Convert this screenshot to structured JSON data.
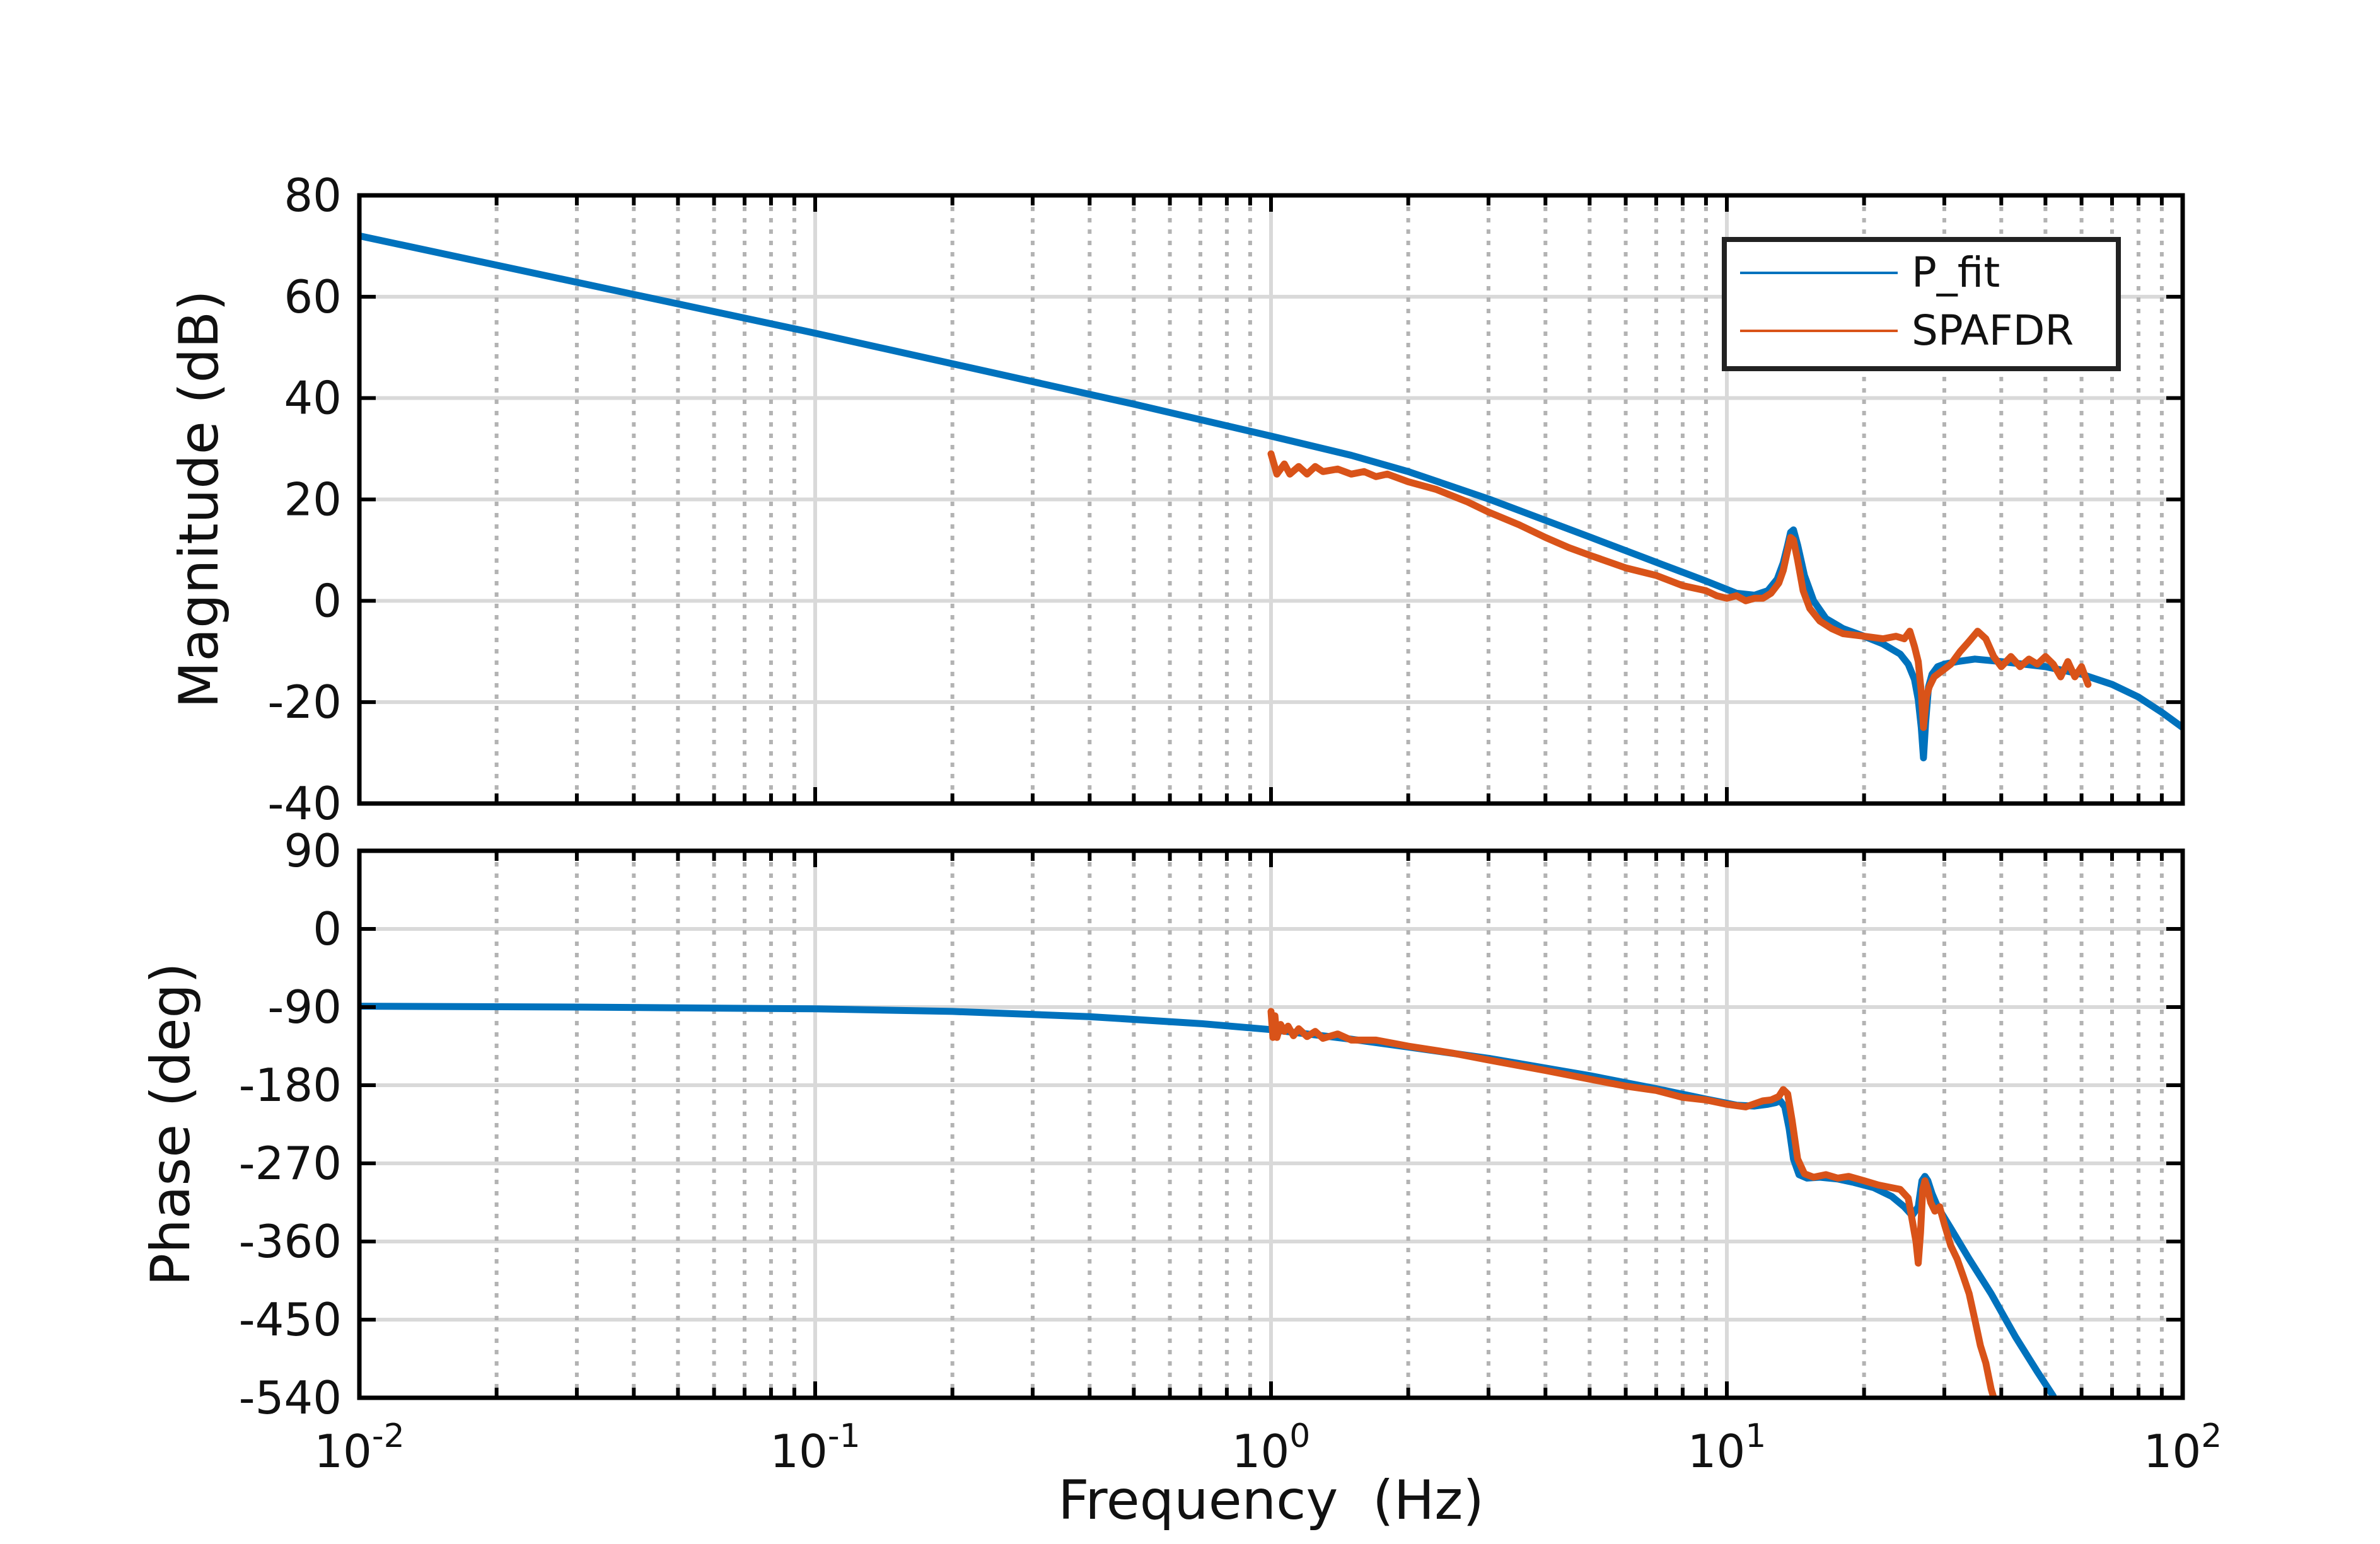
{
  "chart_data": [
    {
      "type": "line",
      "panel": "magnitude",
      "ylabel": "Magnitude (dB)",
      "ylim": [
        -40,
        80
      ],
      "yticks": [
        -40,
        -20,
        0,
        20,
        40,
        60,
        80
      ],
      "ytick_labels": [
        "-40",
        "-20",
        "0",
        "20",
        "40",
        "60",
        "80"
      ],
      "xscale": "log",
      "xlim": [
        0.01,
        100
      ],
      "grid": true,
      "legend": {
        "placement": "top-right",
        "entries": [
          "P_fit",
          "SPAFDR"
        ]
      },
      "series": [
        {
          "name": "P_fit",
          "color": "#0072BD",
          "x": [
            0.01,
            0.1,
            0.5,
            1.0,
            1.5,
            2.0,
            3.0,
            5.0,
            7.0,
            9.0,
            10.5,
            11.5,
            12.3,
            12.9,
            13.3,
            13.6,
            13.8,
            14.0,
            14.3,
            14.8,
            15.5,
            16.5,
            18.0,
            20.0,
            22.0,
            24.0,
            25.0,
            25.8,
            26.3,
            26.7,
            27.0,
            27.3,
            27.7,
            28.2,
            29.0,
            30.0,
            32.0,
            35.0,
            40.0,
            50.0,
            60.0,
            70.0,
            80.0,
            90.0,
            100.0
          ],
          "y": [
            72,
            52.8,
            38.8,
            32.5,
            28.7,
            25.5,
            20.1,
            12.6,
            7.6,
            3.9,
            1.5,
            1.1,
            2.0,
            4.3,
            7.5,
            11.0,
            13.5,
            14.0,
            11.0,
            5.0,
            0.0,
            -3.5,
            -5.5,
            -7.0,
            -8.5,
            -10.5,
            -12.5,
            -15.5,
            -19.5,
            -25.0,
            -31.0,
            -24.0,
            -17.0,
            -14.5,
            -13.0,
            -12.5,
            -12.0,
            -11.5,
            -12.0,
            -13.0,
            -14.5,
            -16.5,
            -19.0,
            -22.0,
            -25.0
          ]
        },
        {
          "name": "SPAFDR",
          "color": "#D95319",
          "x": [
            1.0,
            1.03,
            1.07,
            1.1,
            1.15,
            1.2,
            1.25,
            1.3,
            1.4,
            1.5,
            1.6,
            1.7,
            1.8,
            2.0,
            2.3,
            2.7,
            3.0,
            3.5,
            4.0,
            4.5,
            5.0,
            6.0,
            7.0,
            8.0,
            9.0,
            9.5,
            10.0,
            10.5,
            11.0,
            11.5,
            12.0,
            12.5,
            13.0,
            13.3,
            13.6,
            13.8,
            14.0,
            14.3,
            14.7,
            15.2,
            16.0,
            17.0,
            18.0,
            20.0,
            22.0,
            23.5,
            24.5,
            25.2,
            25.8,
            26.3,
            26.7,
            27.0,
            27.4,
            27.8,
            28.5,
            30.0,
            31.0,
            32.5,
            34.0,
            35.5,
            37.0,
            38.5,
            40.0,
            42.0,
            44.0,
            46.0,
            48.0,
            50.0,
            52.0,
            54.0,
            56.0,
            58.0,
            60.0,
            62.0
          ],
          "y": [
            29.0,
            25.0,
            27.0,
            25.0,
            26.5,
            25.0,
            26.5,
            25.5,
            26.0,
            25.0,
            25.5,
            24.5,
            25.0,
            23.5,
            22.0,
            19.5,
            17.5,
            15.0,
            12.5,
            10.5,
            9.0,
            6.5,
            5.0,
            3.0,
            2.0,
            1.0,
            0.5,
            1.0,
            0.0,
            0.5,
            0.5,
            1.5,
            3.5,
            6.0,
            10.0,
            12.5,
            12.0,
            8.0,
            2.0,
            -1.5,
            -4.0,
            -5.5,
            -6.5,
            -7.0,
            -7.5,
            -7.0,
            -7.5,
            -6.0,
            -9.0,
            -12.0,
            -18.0,
            -25.0,
            -19.0,
            -17.0,
            -15.0,
            -13.5,
            -12.5,
            -10.0,
            -8.0,
            -6.0,
            -7.5,
            -11.0,
            -13.0,
            -11.0,
            -13.0,
            -11.5,
            -12.5,
            -11.0,
            -12.5,
            -15.0,
            -12.0,
            -15.0,
            -13.0,
            -16.5
          ]
        }
      ]
    },
    {
      "type": "line",
      "panel": "phase",
      "ylabel": "Phase (deg)",
      "xlabel": "Frequency  (Hz)",
      "ylim": [
        -540,
        90
      ],
      "yticks": [
        -540,
        -450,
        -360,
        -270,
        -180,
        -90,
        0,
        90
      ],
      "ytick_labels": [
        "-540",
        "-450",
        "-360",
        "-270",
        "-180",
        "-90",
        "0",
        "90"
      ],
      "xscale": "log",
      "xlim": [
        0.01,
        100
      ],
      "xtick_labels": [
        {
          "base": "10",
          "exp": "-2",
          "value": 0.01
        },
        {
          "base": "10",
          "exp": "-1",
          "value": 0.1
        },
        {
          "base": "10",
          "exp": "0",
          "value": 1
        },
        {
          "base": "10",
          "exp": "1",
          "value": 10
        },
        {
          "base": "10",
          "exp": "2",
          "value": 100
        }
      ],
      "grid": true,
      "series": [
        {
          "name": "P_fit",
          "color": "#0072BD",
          "x": [
            0.01,
            0.03,
            0.1,
            0.2,
            0.4,
            0.7,
            1.0,
            1.5,
            2.0,
            3.0,
            5.0,
            7.0,
            9.0,
            10.5,
            11.5,
            12.3,
            12.8,
            13.1,
            13.4,
            13.7,
            14.0,
            14.4,
            15.0,
            16.0,
            17.5,
            19.0,
            21.0,
            23.0,
            24.5,
            25.5,
            26.3,
            26.8,
            27.2,
            27.6,
            28.2,
            29.0,
            31.0,
            34.0,
            38.0,
            43.0,
            48.0,
            52.0
          ],
          "y": [
            -89,
            -90,
            -92,
            -95,
            -101,
            -109,
            -116,
            -127,
            -136,
            -149,
            -169,
            -184,
            -196,
            -203,
            -204,
            -202,
            -200,
            -198,
            -205,
            -230,
            -265,
            -283,
            -287,
            -286,
            -288,
            -292,
            -298,
            -308,
            -320,
            -330,
            -320,
            -290,
            -285,
            -290,
            -305,
            -320,
            -345,
            -380,
            -420,
            -470,
            -510,
            -538
          ]
        },
        {
          "name": "SPAFDR",
          "color": "#D95319",
          "x": [
            1.0,
            1.01,
            1.02,
            1.03,
            1.05,
            1.07,
            1.09,
            1.12,
            1.15,
            1.2,
            1.25,
            1.3,
            1.4,
            1.5,
            1.7,
            2.0,
            2.5,
            3.0,
            4.0,
            5.0,
            6.0,
            7.0,
            8.0,
            9.0,
            10.0,
            11.0,
            12.0,
            12.5,
            13.0,
            13.3,
            13.6,
            13.9,
            14.3,
            14.8,
            15.5,
            16.5,
            17.5,
            18.5,
            20.0,
            21.5,
            23.0,
            24.0,
            25.0,
            25.5,
            26.0,
            26.3,
            26.6,
            26.9,
            27.2,
            27.6,
            28.0,
            28.6,
            29.3,
            30.0,
            31.0,
            32.0,
            33.0,
            34.0,
            35.0,
            36.0,
            37.0,
            38.0,
            38.5
          ],
          "y": [
            -95,
            -125,
            -100,
            -125,
            -110,
            -118,
            -112,
            -123,
            -115,
            -124,
            -118,
            -126,
            -121,
            -128,
            -128,
            -135,
            -143,
            -151,
            -163,
            -173,
            -181,
            -186,
            -194,
            -197,
            -202,
            -205,
            -198,
            -197,
            -193,
            -185,
            -190,
            -220,
            -265,
            -282,
            -286,
            -283,
            -287,
            -285,
            -290,
            -295,
            -298,
            -300,
            -310,
            -335,
            -360,
            -385,
            -350,
            -300,
            -290,
            -300,
            -315,
            -325,
            -320,
            -340,
            -365,
            -380,
            -400,
            -420,
            -450,
            -480,
            -500,
            -530,
            -540
          ]
        }
      ]
    }
  ]
}
